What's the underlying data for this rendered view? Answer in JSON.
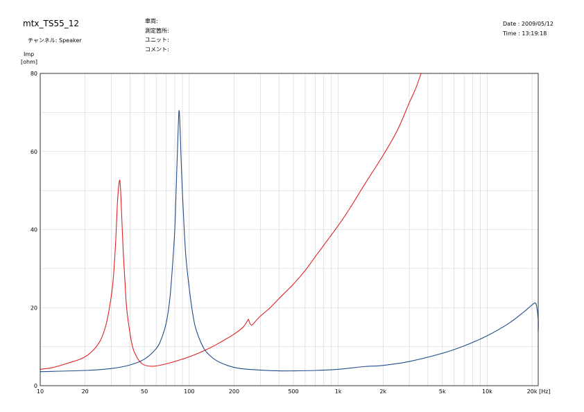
{
  "header": {
    "title": "mtx_TS55_12",
    "channel": "チャンネル: Speaker",
    "car": "車両:",
    "location": "測定箇所:",
    "unit": "ユニット:",
    "comment": "コメント:",
    "date": "Date : 2009/05/12",
    "time": "Time : 13:19:18"
  },
  "chart_data": {
    "type": "line",
    "ylabel": "Imp",
    "yunit": "[ohm]",
    "xunit": "[Hz]",
    "xscale": "log",
    "xlim": [
      10,
      22000
    ],
    "ylim": [
      0,
      80
    ],
    "grid": true,
    "yticks": [
      0,
      20,
      40,
      60,
      80
    ],
    "xticks": [
      {
        "v": 10,
        "label": "10"
      },
      {
        "v": 20,
        "label": "20"
      },
      {
        "v": 50,
        "label": "50"
      },
      {
        "v": 100,
        "label": "100"
      },
      {
        "v": 200,
        "label": "200"
      },
      {
        "v": 500,
        "label": "500"
      },
      {
        "v": 1000,
        "label": "1k"
      },
      {
        "v": 2000,
        "label": "2k"
      },
      {
        "v": 5000,
        "label": "5k"
      },
      {
        "v": 10000,
        "label": "10k"
      },
      {
        "v": 20000,
        "label": "20k"
      }
    ],
    "series": [
      {
        "color": "#e02020",
        "points": [
          [
            10,
            4.2
          ],
          [
            12,
            4.6
          ],
          [
            14,
            5.3
          ],
          [
            16,
            6.0
          ],
          [
            18,
            6.6
          ],
          [
            20,
            7.4
          ],
          [
            22,
            8.6
          ],
          [
            24,
            10.2
          ],
          [
            26,
            12.5
          ],
          [
            28,
            16.5
          ],
          [
            30,
            23.0
          ],
          [
            31,
            28.0
          ],
          [
            32,
            36.0
          ],
          [
            33,
            47.0
          ],
          [
            34,
            52.5
          ],
          [
            34.5,
            51.0
          ],
          [
            35,
            46.0
          ],
          [
            36,
            35.0
          ],
          [
            37,
            27.0
          ],
          [
            38,
            20.0
          ],
          [
            40,
            13.5
          ],
          [
            42,
            9.5
          ],
          [
            45,
            7.0
          ],
          [
            48,
            5.7
          ],
          [
            52,
            5.1
          ],
          [
            58,
            5.0
          ],
          [
            65,
            5.3
          ],
          [
            75,
            5.9
          ],
          [
            90,
            6.8
          ],
          [
            110,
            8.0
          ],
          [
            140,
            9.8
          ],
          [
            170,
            11.6
          ],
          [
            200,
            13.2
          ],
          [
            230,
            15.0
          ],
          [
            245,
            16.5
          ],
          [
            250,
            17.0
          ],
          [
            255,
            16.0
          ],
          [
            262,
            15.5
          ],
          [
            270,
            15.9
          ],
          [
            300,
            17.8
          ],
          [
            350,
            20.0
          ],
          [
            400,
            22.3
          ],
          [
            500,
            26.0
          ],
          [
            600,
            29.5
          ],
          [
            700,
            33.0
          ],
          [
            800,
            36.0
          ],
          [
            1000,
            41.0
          ],
          [
            1200,
            45.5
          ],
          [
            1500,
            51.5
          ],
          [
            2000,
            59.0
          ],
          [
            2500,
            65.5
          ],
          [
            3000,
            72.5
          ],
          [
            3300,
            76.0
          ],
          [
            3600,
            80.0
          ]
        ]
      },
      {
        "color": "#204a8c",
        "points": [
          [
            10,
            3.6
          ],
          [
            20,
            3.9
          ],
          [
            30,
            4.4
          ],
          [
            40,
            5.3
          ],
          [
            50,
            6.8
          ],
          [
            60,
            9.5
          ],
          [
            65,
            12.0
          ],
          [
            70,
            16.0
          ],
          [
            74,
            22.0
          ],
          [
            77,
            30.0
          ],
          [
            80,
            40.0
          ],
          [
            82,
            52.0
          ],
          [
            84,
            64.0
          ],
          [
            85.5,
            70.5
          ],
          [
            87,
            65.0
          ],
          [
            89,
            54.0
          ],
          [
            92,
            42.0
          ],
          [
            95,
            33.0
          ],
          [
            100,
            25.0
          ],
          [
            105,
            19.0
          ],
          [
            110,
            15.0
          ],
          [
            120,
            11.0
          ],
          [
            130,
            8.7
          ],
          [
            150,
            6.6
          ],
          [
            180,
            5.2
          ],
          [
            220,
            4.4
          ],
          [
            300,
            4.0
          ],
          [
            400,
            3.8
          ],
          [
            500,
            3.8
          ],
          [
            700,
            3.9
          ],
          [
            1000,
            4.2
          ],
          [
            1500,
            4.9
          ],
          [
            2000,
            5.2
          ],
          [
            3000,
            6.2
          ],
          [
            5000,
            8.3
          ],
          [
            7000,
            10.2
          ],
          [
            10000,
            12.8
          ],
          [
            14000,
            16.0
          ],
          [
            18000,
            19.2
          ],
          [
            20000,
            20.7
          ],
          [
            21000,
            21.2
          ],
          [
            21500,
            20.2
          ],
          [
            22000,
            17.0
          ],
          [
            22000,
            14.0
          ]
        ]
      }
    ]
  }
}
